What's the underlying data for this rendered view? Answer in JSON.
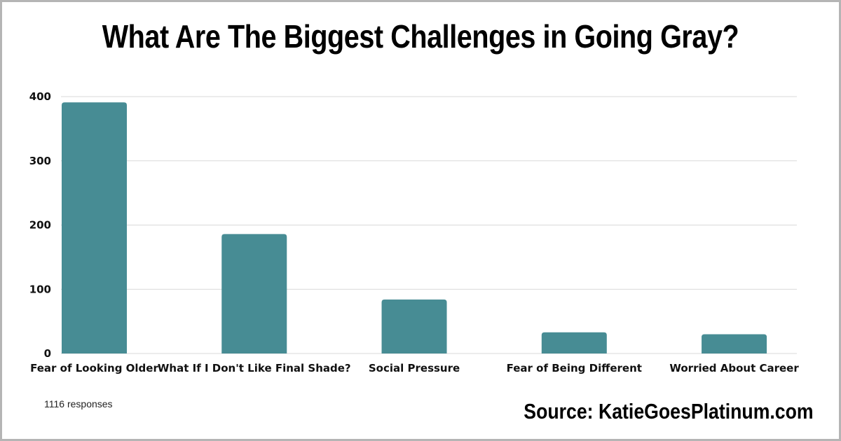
{
  "chart_data": {
    "type": "bar",
    "title": "What Are The Biggest Challenges in Going Gray?",
    "categories": [
      "Fear of Looking Older",
      "What If I Don't Like Final Shade?",
      "Social Pressure",
      "Fear of Being Different",
      "Worried About Career"
    ],
    "values": [
      391,
      186,
      84,
      33,
      30
    ],
    "yticks": [
      0,
      100,
      200,
      300,
      400
    ],
    "ylim": [
      0,
      400
    ],
    "xlabel": "",
    "ylabel": "",
    "grid": true,
    "legend": "none",
    "bar_color": "#478c94",
    "grid_color": "#d9d9d9"
  },
  "footer": {
    "note": "1116 responses",
    "source": "Source: KatieGoesPlatinum.com"
  }
}
